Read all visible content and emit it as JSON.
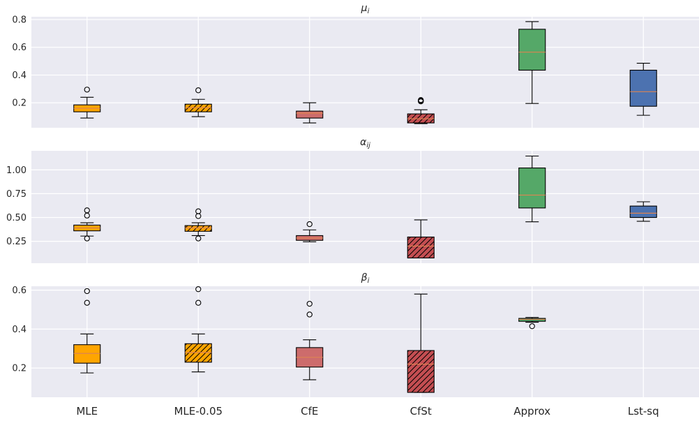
{
  "chart_data": {
    "type": "boxplot",
    "categories": [
      "MLE",
      "MLE-0.05",
      "CfE",
      "CfSt",
      "Approx",
      "Lst-sq"
    ],
    "colors": {
      "background": "#eaeaf2",
      "grid": "#ffffff",
      "MLE": "#ffa500",
      "MLE-0.05": "#ffa500",
      "CfE": "#cd6c6c",
      "CfSt": "#c44e52",
      "Approx": "#55a868",
      "Lst-sq": "#4c72b0",
      "median": "#dd8452"
    },
    "hatched": [
      "MLE-0.05",
      "CfSt"
    ],
    "panels": [
      {
        "id": "mu",
        "title_main": "μ",
        "title_sub": "i",
        "ylim": [
          0.02,
          0.82
        ],
        "yticks": [
          0.2,
          0.4,
          0.6,
          0.8
        ],
        "ytick_labels": [
          "0.2",
          "0.4",
          "0.6",
          "0.8"
        ],
        "boxes": [
          {
            "category": "MLE",
            "whislo": 0.09,
            "q1": 0.135,
            "med": 0.16,
            "q3": 0.185,
            "whishi": 0.24,
            "fliers": [
              0.295
            ]
          },
          {
            "category": "MLE-0.05",
            "whislo": 0.1,
            "q1": 0.135,
            "med": 0.165,
            "q3": 0.19,
            "whishi": 0.225,
            "fliers": [
              0.29
            ]
          },
          {
            "category": "CfE",
            "whislo": 0.055,
            "q1": 0.09,
            "med": 0.125,
            "q3": 0.14,
            "whishi": 0.2,
            "fliers": []
          },
          {
            "category": "CfSt",
            "whislo": 0.05,
            "q1": 0.055,
            "med": 0.085,
            "q3": 0.12,
            "whishi": 0.15,
            "fliers": [
              0.21,
              0.215,
              0.22
            ]
          },
          {
            "category": "Approx",
            "whislo": 0.195,
            "q1": 0.435,
            "med": 0.565,
            "q3": 0.73,
            "whishi": 0.785,
            "fliers": []
          },
          {
            "category": "Lst-sq",
            "whislo": 0.11,
            "q1": 0.175,
            "med": 0.28,
            "q3": 0.435,
            "whishi": 0.485,
            "fliers": []
          }
        ]
      },
      {
        "id": "alpha",
        "title_main": "α",
        "title_sub": "ij",
        "ylim": [
          0.02,
          1.2
        ],
        "yticks": [
          0.25,
          0.5,
          0.75,
          1.0
        ],
        "ytick_labels": [
          "0.25",
          "0.50",
          "0.75",
          "1.00"
        ],
        "boxes": [
          {
            "category": "MLE",
            "whislo": 0.305,
            "q1": 0.36,
            "med": 0.39,
            "q3": 0.42,
            "whishi": 0.445,
            "fliers": [
              0.28,
              0.52,
              0.575
            ]
          },
          {
            "category": "MLE-0.05",
            "whislo": 0.31,
            "q1": 0.355,
            "med": 0.39,
            "q3": 0.415,
            "whishi": 0.445,
            "fliers": [
              0.28,
              0.515,
              0.565
            ]
          },
          {
            "category": "CfE",
            "whislo": 0.245,
            "q1": 0.26,
            "med": 0.285,
            "q3": 0.31,
            "whishi": 0.37,
            "fliers": [
              0.43
            ]
          },
          {
            "category": "CfSt",
            "whislo": 0.075,
            "q1": 0.075,
            "med": 0.2,
            "q3": 0.295,
            "whishi": 0.475,
            "fliers": []
          },
          {
            "category": "Approx",
            "whislo": 0.455,
            "q1": 0.6,
            "med": 0.735,
            "q3": 1.02,
            "whishi": 1.145,
            "fliers": []
          },
          {
            "category": "Lst-sq",
            "whislo": 0.46,
            "q1": 0.5,
            "med": 0.545,
            "q3": 0.62,
            "whishi": 0.665,
            "fliers": []
          }
        ]
      },
      {
        "id": "beta",
        "title_main": "β",
        "title_sub": "i",
        "ylim": [
          0.05,
          0.62
        ],
        "yticks": [
          0.2,
          0.4,
          0.6
        ],
        "ytick_labels": [
          "0.2",
          "0.4",
          "0.6"
        ],
        "boxes": [
          {
            "category": "MLE",
            "whislo": 0.175,
            "q1": 0.225,
            "med": 0.275,
            "q3": 0.32,
            "whishi": 0.375,
            "fliers": [
              0.535,
              0.595
            ]
          },
          {
            "category": "MLE-0.05",
            "whislo": 0.18,
            "q1": 0.23,
            "med": 0.28,
            "q3": 0.325,
            "whishi": 0.375,
            "fliers": [
              0.535,
              0.605
            ]
          },
          {
            "category": "CfE",
            "whislo": 0.14,
            "q1": 0.205,
            "med": 0.255,
            "q3": 0.305,
            "whishi": 0.345,
            "fliers": [
              0.475,
              0.53
            ]
          },
          {
            "category": "CfSt",
            "whislo": 0.075,
            "q1": 0.075,
            "med": 0.22,
            "q3": 0.29,
            "whishi": 0.58,
            "fliers": []
          },
          {
            "category": "Approx",
            "whislo": 0.435,
            "q1": 0.44,
            "med": 0.45,
            "q3": 0.455,
            "whishi": 0.46,
            "fliers": [
              0.415
            ]
          }
        ]
      }
    ]
  }
}
